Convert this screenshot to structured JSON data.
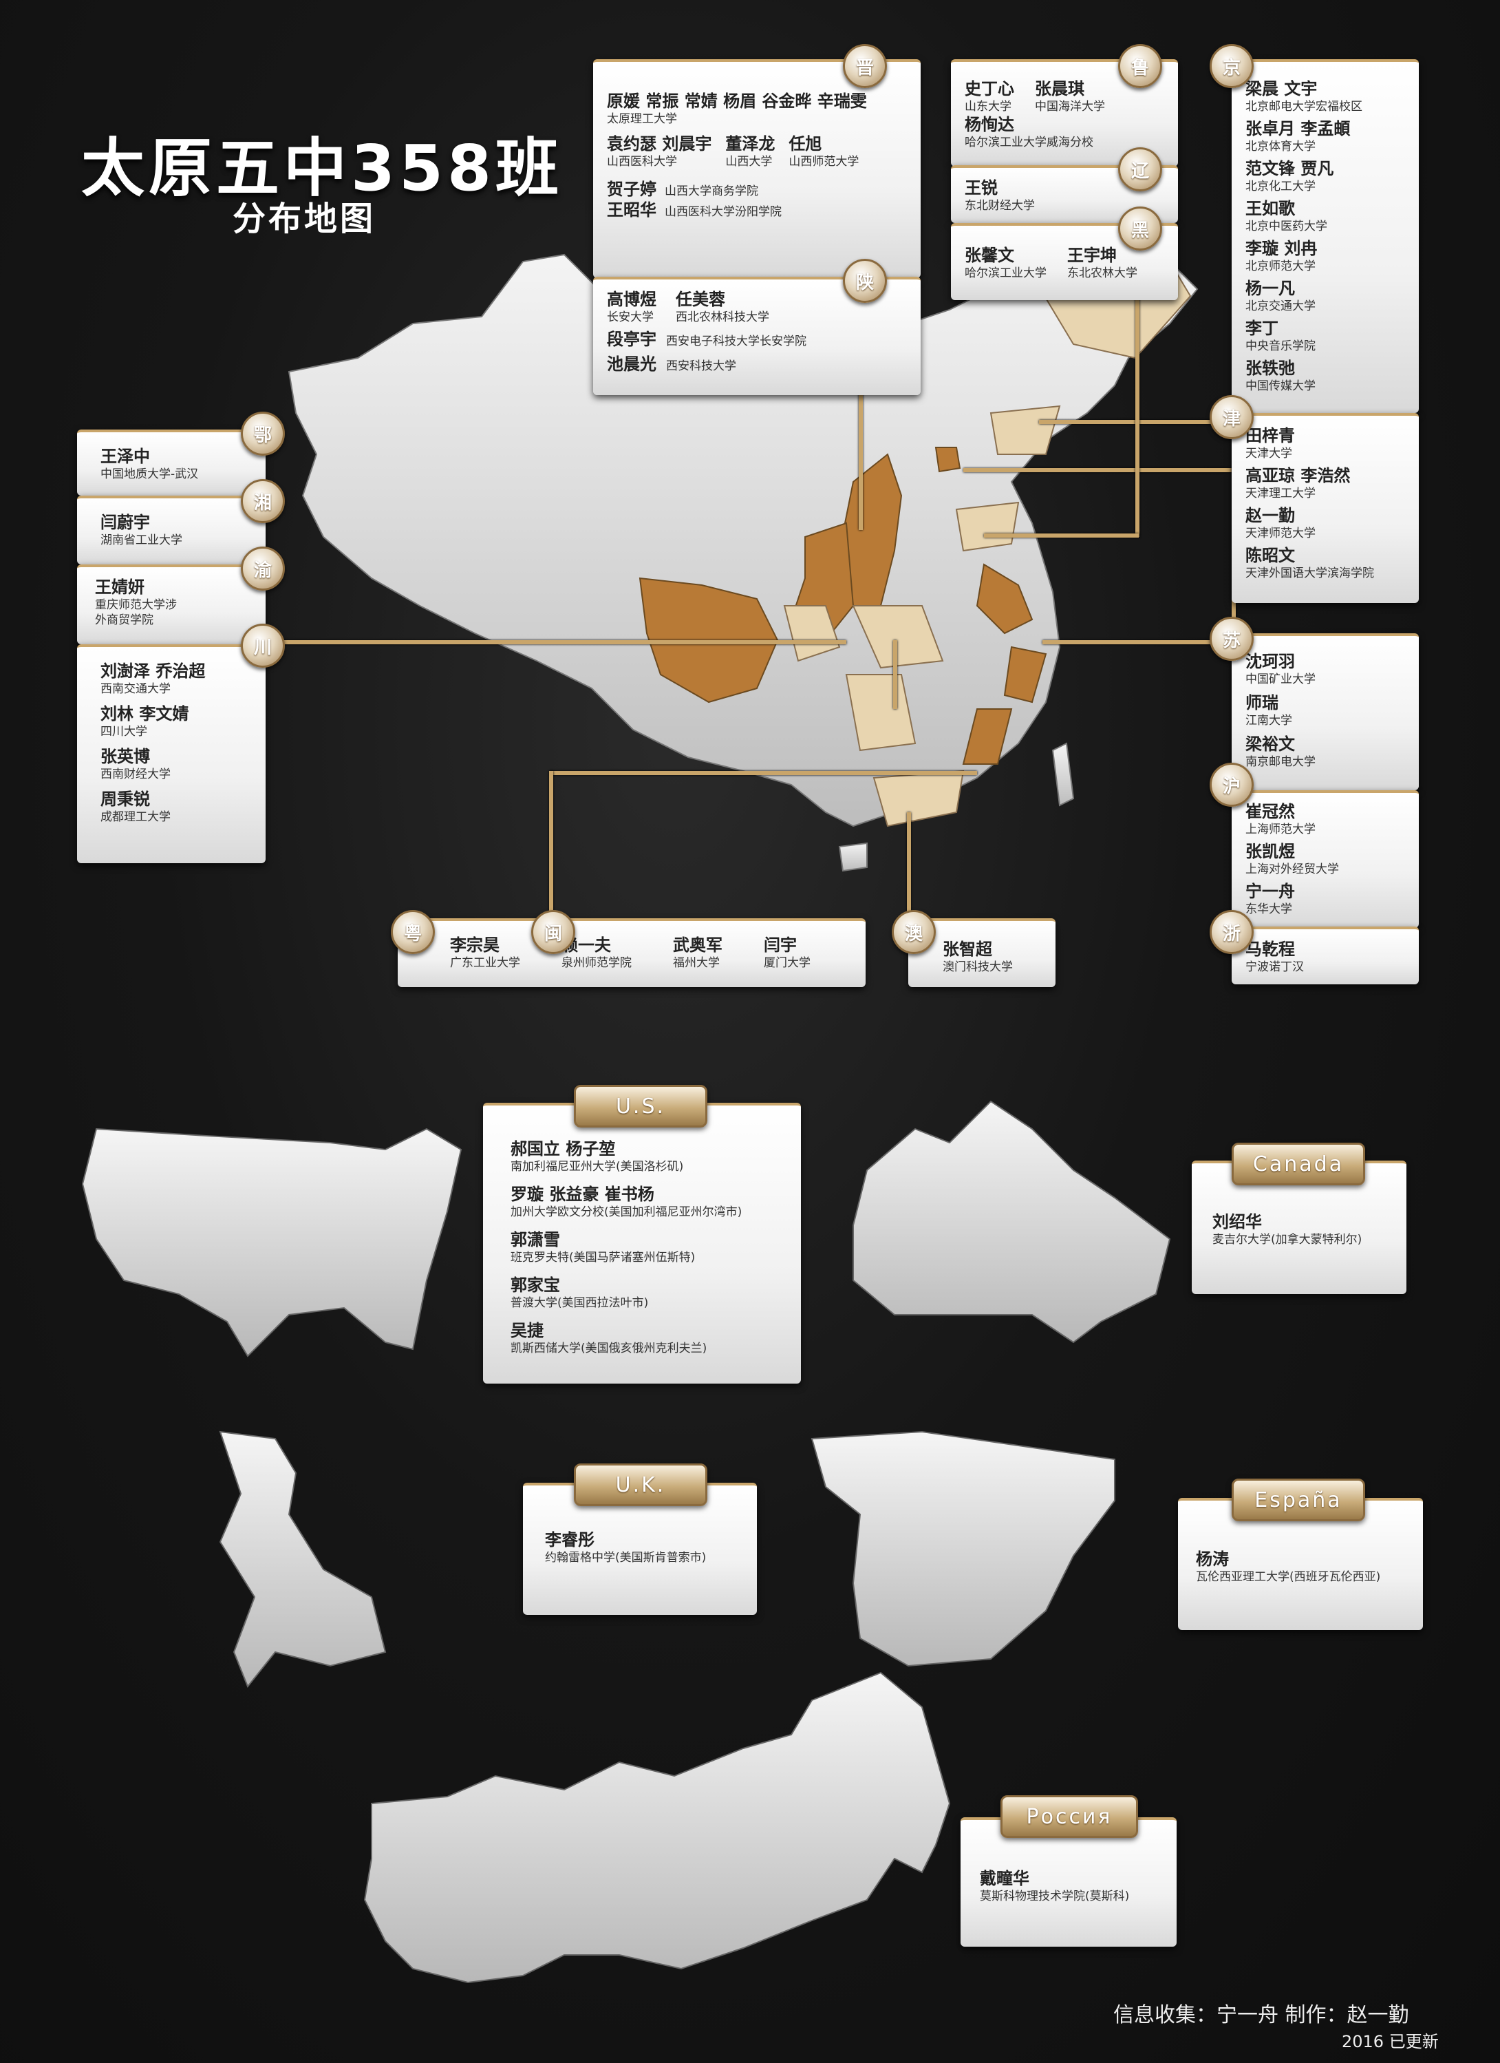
{
  "title": "太原五中358班",
  "subtitle": "分布地图",
  "colors": {
    "gold": "#c9a56a",
    "dark_province": "#b87a36",
    "light_province": "#e8d5b0",
    "map": "#e8e8e8"
  },
  "tags": {
    "jin": "晋",
    "shaan": "陕",
    "lu": "鲁",
    "liao": "辽",
    "hei": "黑",
    "jing": "京",
    "jin_tj": "津",
    "su": "苏",
    "hu": "沪",
    "zhe": "浙",
    "e": "鄂",
    "xiang": "湘",
    "yu": "渝",
    "chuan": "川",
    "yue": "粤",
    "min": "闽",
    "ao": "澳"
  },
  "shanxi": {
    "row1_names": "原媛 常振 常婧 杨眉 谷金晔 辛瑞雯",
    "row1_school": "太原理工大学",
    "row2": [
      {
        "n": "袁约瑟 刘晨宇",
        "s": "山西医科大学"
      },
      {
        "n": "董泽龙",
        "s": "山西大学"
      },
      {
        "n": "任旭",
        "s": "山西师范大学"
      }
    ],
    "row3": [
      {
        "n": "贺子婷",
        "s": "山西大学商务学院"
      },
      {
        "n": "王昭华",
        "s": "山西医科大学汾阳学院"
      }
    ]
  },
  "shaanxi": {
    "row1": [
      {
        "n": "高博煜",
        "s": "长安大学"
      },
      {
        "n": "任美蓉",
        "s": "西北农林科技大学"
      }
    ],
    "row2": [
      {
        "n": "段亭宇",
        "s": "西安电子科技大学长安学院"
      },
      {
        "n": "池晨光",
        "s": "西安科技大学"
      }
    ]
  },
  "shandong": {
    "row1": [
      {
        "n": "史丁心",
        "s": "山东大学"
      },
      {
        "n": "张晨琪",
        "s": "中国海洋大学"
      }
    ],
    "row2": {
      "n": "杨恂达",
      "s": "哈尔滨工业大学威海分校"
    }
  },
  "liaoning": {
    "n": "王锐",
    "s": "东北财经大学"
  },
  "heilongjiang": [
    {
      "n": "张馨文",
      "s": "哈尔滨工业大学"
    },
    {
      "n": "王宇坤",
      "s": "东北农林大学"
    }
  ],
  "beijing": [
    {
      "n": "梁晨 文宇",
      "s": "北京邮电大学宏福校区"
    },
    {
      "n": "张卓月 李孟頔",
      "s": "北京体育大学"
    },
    {
      "n": "范文锋 贾凡",
      "s": "北京化工大学"
    },
    {
      "n": "王如歌",
      "s": "北京中医药大学"
    },
    {
      "n": "李璇 刘冉",
      "s": "北京师范大学"
    },
    {
      "n": "杨一凡",
      "s": "北京交通大学"
    },
    {
      "n": "李丁",
      "s": "中央音乐学院"
    },
    {
      "n": "张轶弛",
      "s": "中国传媒大学"
    }
  ],
  "tianjin": [
    {
      "n": "田梓青",
      "s": "天津大学"
    },
    {
      "n": "高亚琼 李浩然",
      "s": "天津理工大学"
    },
    {
      "n": "赵一勤",
      "s": "天津师范大学"
    },
    {
      "n": "陈昭文",
      "s": "天津外国语大学滨海学院"
    }
  ],
  "jiangsu": [
    {
      "n": "沈珂羽",
      "s": "中国矿业大学"
    },
    {
      "n": "师瑞",
      "s": "江南大学"
    },
    {
      "n": "梁裕文",
      "s": "南京邮电大学"
    }
  ],
  "shanghai": [
    {
      "n": "崔冠然",
      "s": "上海师范大学"
    },
    {
      "n": "张凯煜",
      "s": "上海对外经贸大学"
    },
    {
      "n": "宁一舟",
      "s": "东华大学"
    }
  ],
  "zhejiang": {
    "n": "马乾程",
    "s": "宁波诺丁汉"
  },
  "hubei": {
    "n": "王泽中",
    "s": "中国地质大学-武汉"
  },
  "hunan": {
    "n": "闫蔚宇",
    "s": "湖南省工业大学"
  },
  "chongqing": {
    "n": "王婧妍",
    "s1": "重庆师范大学涉",
    "s2": "外商贸学院"
  },
  "sichuan": [
    {
      "n": "刘澍泽 乔治超",
      "s": "西南交通大学"
    },
    {
      "n": "刘林 李文婧",
      "s": "四川大学"
    },
    {
      "n": "张英博",
      "s": "西南财经大学"
    },
    {
      "n": "周秉锐",
      "s": "成都理工大学"
    }
  ],
  "guangdong_fujian": [
    {
      "n": "李宗昊",
      "s": "广东工业大学"
    },
    {
      "n": "赖一夫",
      "s": "泉州师范学院"
    },
    {
      "n": "武奥军",
      "s": "福州大学"
    },
    {
      "n": "闫宇",
      "s": "厦门大学"
    }
  ],
  "macau": {
    "n": "张智超",
    "s": "澳门科技大学"
  },
  "countries": {
    "us": {
      "label": "U.S.",
      "items": [
        {
          "n": "郝国立 杨子堃",
          "s": "南加利福尼亚州大学(美国洛杉矶)"
        },
        {
          "n": "罗璇 张益豪 崔书杨",
          "s": "加州大学欧文分校(美国加利福尼亚州尔湾市)"
        },
        {
          "n": "郭潇雪",
          "s": "班克罗夫特(美国马萨诸塞州伍斯特)"
        },
        {
          "n": "郭家宝",
          "s": "普渡大学(美国西拉法叶市)"
        },
        {
          "n": "吴捷",
          "s": "凯斯西储大学(美国俄亥俄州克利夫兰)"
        }
      ]
    },
    "canada": {
      "label": "Canada",
      "items": [
        {
          "n": "刘绍华",
          "s": "麦吉尔大学(加拿大蒙特利尔)"
        }
      ]
    },
    "uk": {
      "label": "U.K.",
      "items": [
        {
          "n": "李睿彤",
          "s": "约翰雷格中学(美国斯肯普索市)"
        }
      ]
    },
    "spain": {
      "label": "España",
      "items": [
        {
          "n": "杨涛",
          "s": "瓦伦西亚理工大学(西班牙瓦伦西亚)"
        }
      ]
    },
    "russia": {
      "label": "Россия",
      "items": [
        {
          "n": "戴疃华",
          "s": "莫斯科物理技术学院(莫斯科)"
        }
      ]
    }
  },
  "footer": {
    "credits": "信息收集：宁一舟 制作：赵一勤",
    "updated": "2016 已更新"
  }
}
